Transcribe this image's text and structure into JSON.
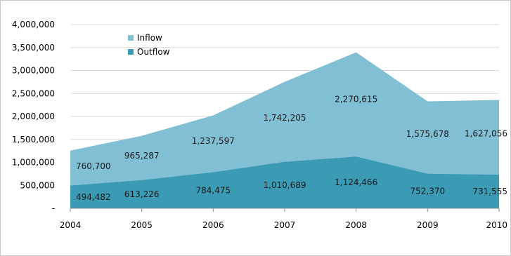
{
  "chart_data": {
    "type": "area",
    "stacked": true,
    "x": [
      "2004",
      "2005",
      "2006",
      "2007",
      "2008",
      "2009",
      "2010"
    ],
    "series": [
      {
        "name": "Outflow",
        "values": [
          494482,
          613226,
          784475,
          1010689,
          1124466,
          752370,
          731555
        ],
        "labels": [
          "494,482",
          "613,226",
          "784,475",
          "1,010,689",
          "1,124,466",
          "752,370",
          "731,555"
        ],
        "color": "#3b9ab4"
      },
      {
        "name": "Inflow",
        "values": [
          760700,
          965287,
          1237597,
          1742205,
          2270615,
          1575678,
          1627056
        ],
        "labels": [
          "760,700",
          "965,287",
          "1,237,597",
          "1,742,205",
          "2,270,615",
          "1,575,678",
          "1,627,056"
        ],
        "color": "#80bfd4"
      }
    ],
    "ylim": [
      0,
      4000000
    ],
    "yticks": [
      0,
      500000,
      1000000,
      1500000,
      2000000,
      2500000,
      3000000,
      3500000,
      4000000
    ],
    "ytick_labels": [
      "-",
      "500,000",
      "1,000,000",
      "1,500,000",
      "2,000,000",
      "2,500,000",
      "3,000,000",
      "3,500,000",
      "4,000,000"
    ],
    "legend": {
      "placement": "top-left",
      "entries": [
        "Inflow",
        "Outflow"
      ]
    },
    "grid": true
  }
}
